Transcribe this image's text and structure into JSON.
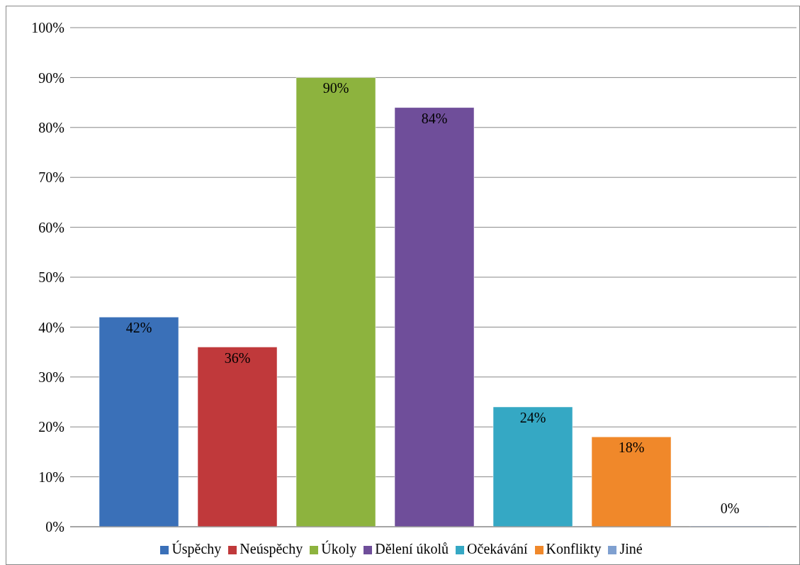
{
  "chart_data": {
    "type": "bar",
    "categories": [
      null
    ],
    "series": [
      {
        "name": "Úspěchy",
        "color": "#3a70b8",
        "values": [
          42
        ],
        "value_labels": [
          "42%"
        ]
      },
      {
        "name": "Neúspěchy",
        "color": "#c0393b",
        "values": [
          36
        ],
        "value_labels": [
          "36%"
        ]
      },
      {
        "name": "Úkoly",
        "color": "#8db33e",
        "values": [
          90
        ],
        "value_labels": [
          "90%"
        ]
      },
      {
        "name": "Dělení úkolů",
        "color": "#6f4e9a",
        "values": [
          84
        ],
        "value_labels": [
          "84%"
        ]
      },
      {
        "name": "Očekávání",
        "color": "#35a8c4",
        "values": [
          24
        ],
        "value_labels": [
          "24%"
        ]
      },
      {
        "name": "Konflikty",
        "color": "#f0882a",
        "values": [
          18
        ],
        "value_labels": [
          "18%"
        ]
      },
      {
        "name": "Jiné",
        "color": "#7fa0d0",
        "values": [
          0
        ],
        "value_labels": [
          "0%"
        ]
      }
    ],
    "ylim": [
      0,
      100
    ],
    "yticks": [
      {
        "value": 0,
        "label": "0%"
      },
      {
        "value": 10,
        "label": "10%"
      },
      {
        "value": 20,
        "label": "20%"
      },
      {
        "value": 30,
        "label": "30%"
      },
      {
        "value": 40,
        "label": "40%"
      },
      {
        "value": 50,
        "label": "50%"
      },
      {
        "value": 60,
        "label": "60%"
      },
      {
        "value": 70,
        "label": "70%"
      },
      {
        "value": 80,
        "label": "80%"
      },
      {
        "value": 90,
        "label": "90%"
      },
      {
        "value": 100,
        "label": "100%"
      }
    ],
    "grid": "y",
    "legend": "bottom"
  }
}
